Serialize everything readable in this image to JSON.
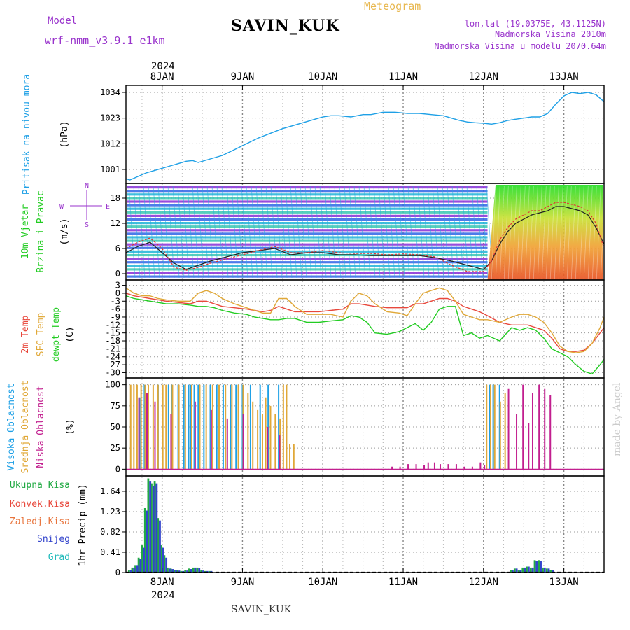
{
  "header": {
    "model_label": "Model",
    "model_name": "wrf-nmm_v3.9.1 e1km",
    "station": "SAVIN_KUK",
    "product": "Meteogram",
    "lonlat": "lon,lat (19.0375E, 43.1125N)",
    "altitude": "Nadmorska Visina 2010m",
    "model_altitude": "Nadmorska Visina u modelu 2070.64m",
    "footer_station": "SAVIN_KUK",
    "credit": "made by Angel",
    "year_top": "2024",
    "year_bottom": "2024"
  },
  "colors": {
    "pressure": "#1ea0e6",
    "temp2m": "#e8483c",
    "sfc": "#e0a838",
    "dewpt": "#22cc22",
    "high_cloud": "#1ea0e6",
    "mid_cloud": "#e0a838",
    "low_cloud": "#c21f8f",
    "total_precip": "#22aa44",
    "snow": "#3344cc",
    "wind_speed_line": "#222222",
    "gust": "#dd3333"
  },
  "chart_data": [
    {
      "type": "line",
      "panel": "pressure",
      "ylabel_name": "Pritisak na nivou mora",
      "ylabel_unit": "(hPa)",
      "yticks": [
        "1034",
        "1023",
        "1012",
        "1001"
      ],
      "ytick_values": [
        1034,
        1023,
        1012,
        1001
      ],
      "ylim": [
        995,
        1037
      ],
      "x_days": [
        "8JAN",
        "9JAN",
        "10JAN",
        "11JAN",
        "12JAN",
        "13JAN"
      ],
      "x": [
        7.55,
        7.6,
        7.7,
        7.8,
        7.9,
        8.0,
        8.1,
        8.2,
        8.3,
        8.38,
        8.45,
        8.6,
        8.75,
        8.9,
        9.05,
        9.2,
        9.35,
        9.5,
        9.65,
        9.8,
        9.9,
        10.0,
        10.1,
        10.2,
        10.35,
        10.5,
        10.6,
        10.75,
        10.9,
        11.05,
        11.2,
        11.35,
        11.5,
        11.6,
        11.7,
        11.8,
        11.9,
        12.0,
        12.1,
        12.2,
        12.3,
        12.4,
        12.5,
        12.6,
        12.7,
        12.8,
        12.9,
        13.0,
        13.1,
        13.2,
        13.3,
        13.4,
        13.5
      ],
      "y": [
        997,
        996.5,
        998,
        999.5,
        1000.5,
        1001.5,
        1002.5,
        1003.5,
        1004.5,
        1004.8,
        1004,
        1005.5,
        1007,
        1009.5,
        1012,
        1014.5,
        1016.5,
        1018.5,
        1020,
        1021.5,
        1022.5,
        1023.5,
        1024,
        1024,
        1023.5,
        1024.5,
        1024.5,
        1025.5,
        1025.5,
        1025,
        1025,
        1024.5,
        1024,
        1023,
        1022,
        1021.3,
        1021,
        1020.8,
        1020.4,
        1021,
        1022,
        1022.5,
        1023,
        1023.5,
        1023.5,
        1025,
        1029,
        1032.5,
        1034,
        1033.5,
        1034,
        1033,
        1030
      ]
    },
    {
      "type": "line",
      "panel": "wind",
      "ylabel_name": "10m Vjetar",
      "ylabel_name2": "Brzina i Pravac",
      "ylabel_unit": "(m/s)",
      "compass": [
        "N",
        "E",
        "S",
        "W"
      ],
      "yticks": [
        "18",
        "12",
        "6",
        "0"
      ],
      "ytick_values": [
        18,
        12,
        6,
        0
      ],
      "ylim": [
        -1.5,
        21.5
      ],
      "series": [
        {
          "name": "speed",
          "x": [
            7.55,
            7.7,
            7.85,
            8.0,
            8.15,
            8.3,
            8.45,
            8.6,
            8.8,
            9.0,
            9.2,
            9.4,
            9.6,
            9.8,
            10.0,
            10.2,
            10.4,
            10.6,
            10.8,
            11.0,
            11.2,
            11.4,
            11.6,
            11.8,
            12.0,
            12.1,
            12.2,
            12.3,
            12.4,
            12.5,
            12.6,
            12.7,
            12.8,
            12.9,
            13.0,
            13.1,
            13.2,
            13.3,
            13.4,
            13.5
          ],
          "y": [
            5,
            6.5,
            7.5,
            5,
            2.5,
            1,
            2,
            3,
            4,
            5,
            5.5,
            6,
            4.5,
            5,
            5,
            4.5,
            4.5,
            4.3,
            4.3,
            4.3,
            4.3,
            3.8,
            3,
            2,
            1,
            3,
            7,
            10,
            12,
            13,
            14,
            14.5,
            15,
            16,
            16,
            15.5,
            15,
            14,
            11,
            7
          ]
        },
        {
          "name": "gust",
          "x": [
            7.55,
            7.7,
            7.85,
            8.0,
            8.15,
            8.3,
            8.45,
            8.6,
            8.8,
            9.0,
            9.2,
            9.4,
            9.6,
            9.8,
            10.0,
            10.2,
            10.4,
            10.6,
            10.8,
            11.0,
            11.2,
            11.4,
            11.6,
            11.8,
            12.0,
            12.1,
            12.2,
            12.3,
            12.4,
            12.5,
            12.6,
            12.7,
            12.8,
            12.9,
            13.0,
            13.1,
            13.2,
            13.3,
            13.4,
            13.5
          ],
          "y": [
            6,
            7.5,
            8.5,
            6,
            1.5,
            0.8,
            1.5,
            2.5,
            3.5,
            4.5,
            5.5,
            6.5,
            5,
            5,
            5.5,
            5,
            4.8,
            4.8,
            4.5,
            4.7,
            4.5,
            4,
            2,
            0.5,
            0.5,
            3,
            8,
            11,
            13,
            14,
            15,
            15,
            16,
            17,
            17,
            16.5,
            16,
            15,
            12,
            6
          ]
        }
      ]
    },
    {
      "type": "line",
      "panel": "temperature",
      "ylabel_name": "2m Temp",
      "ylabel_name2": "SFC Temp",
      "ylabel_name3": "dewpt Temp",
      "ylabel_unit": "(C)",
      "yticks": [
        "3",
        "0",
        "-3",
        "-6",
        "-9",
        "-12",
        "-15",
        "-18",
        "-21",
        "-24",
        "-27",
        "-30"
      ],
      "ytick_values": [
        3,
        0,
        -3,
        -6,
        -9,
        -12,
        -15,
        -18,
        -21,
        -24,
        -27,
        -30
      ],
      "ylim": [
        -32,
        5
      ],
      "x": [
        7.55,
        7.65,
        7.75,
        7.85,
        7.95,
        8.05,
        8.2,
        8.35,
        8.45,
        8.55,
        8.65,
        8.75,
        8.9,
        9.05,
        9.15,
        9.25,
        9.35,
        9.45,
        9.55,
        9.65,
        9.8,
        9.95,
        10.1,
        10.25,
        10.35,
        10.45,
        10.55,
        10.65,
        10.8,
        10.95,
        11.05,
        11.15,
        11.25,
        11.35,
        11.45,
        11.55,
        11.65,
        11.75,
        11.85,
        11.95,
        12.05,
        12.2,
        12.35,
        12.45,
        12.55,
        12.65,
        12.75,
        12.85,
        12.95,
        13.05,
        13.15,
        13.25,
        13.35,
        13.45,
        13.5
      ],
      "series": [
        {
          "name": "2m",
          "y": [
            0,
            -1,
            -1.5,
            -2,
            -2.5,
            -3,
            -3.5,
            -4,
            -3,
            -3,
            -4,
            -5,
            -5.5,
            -6,
            -6.5,
            -7,
            -6.5,
            -5,
            -6,
            -7,
            -7,
            -7,
            -6.5,
            -6,
            -4,
            -4,
            -4.5,
            -5,
            -5.5,
            -5.5,
            -5.5,
            -4,
            -4,
            -3,
            -2,
            -2,
            -3,
            -5,
            -6,
            -7,
            -8.5,
            -11,
            -12,
            -12,
            -12,
            -13,
            -14,
            -17,
            -21,
            -22,
            -22,
            -21.5,
            -19,
            -15,
            -13
          ]
        },
        {
          "name": "SFC",
          "y": [
            2,
            0,
            -1,
            -1,
            -2,
            -2.5,
            -3,
            -3,
            0,
            1,
            0,
            -2,
            -4,
            -5.5,
            -6.5,
            -7.5,
            -7.5,
            -2,
            -2,
            -5,
            -8,
            -8,
            -8,
            -9,
            -3,
            0,
            -1,
            -4,
            -7,
            -7.5,
            -8.5,
            -4,
            0,
            1,
            2,
            1,
            -3,
            -8,
            -9,
            -10,
            -10,
            -11,
            -9,
            -8,
            -8,
            -9,
            -11,
            -15,
            -20,
            -22,
            -22.5,
            -22,
            -19,
            -13,
            -9
          ]
        },
        {
          "name": "dewpt",
          "y": [
            -1,
            -2,
            -2.5,
            -3,
            -3.5,
            -4,
            -4,
            -4.5,
            -5,
            -5,
            -5.5,
            -6.5,
            -7.5,
            -8,
            -9,
            -9.5,
            -10,
            -10,
            -9.5,
            -9.5,
            -11,
            -11,
            -10.5,
            -10,
            -8.5,
            -9,
            -11,
            -15,
            -15.5,
            -14.5,
            -13,
            -11.5,
            -14,
            -11,
            -6,
            -5,
            -5,
            -16,
            -15,
            -17,
            -16,
            -18,
            -13,
            -14,
            -13,
            -14,
            -17,
            -21,
            -22.5,
            -24,
            -27,
            -29.5,
            -30.5,
            -27,
            -25
          ]
        }
      ]
    },
    {
      "type": "bar",
      "panel": "clouds",
      "ylabel_name": "Visoka Oblacnost",
      "ylabel_name2": "Srednja Oblacnost",
      "ylabel_name3": "Niska Oblacnost",
      "ylabel_unit": "(%)",
      "yticks": [
        "100",
        "75",
        "50",
        "25",
        "0"
      ],
      "ytick_values": [
        100,
        75,
        50,
        25,
        0
      ],
      "ylim": [
        -8,
        108
      ],
      "series": [
        {
          "name": "high",
          "x": [
            7.72,
            7.78,
            7.95,
            8.08,
            8.12,
            8.2,
            8.27,
            8.33,
            8.36,
            8.4,
            8.45,
            8.52,
            8.6,
            8.68,
            8.76,
            8.85,
            8.92,
            9.0,
            9.1,
            9.22,
            9.32,
            9.45,
            12.08,
            12.12,
            12.2
          ],
          "y": [
            85,
            100,
            100,
            100,
            100,
            100,
            100,
            100,
            100,
            100,
            100,
            100,
            100,
            100,
            100,
            100,
            100,
            100,
            100,
            100,
            100,
            100,
            100,
            100,
            100
          ]
        },
        {
          "name": "mid",
          "x": [
            7.62,
            7.66,
            7.7,
            7.75,
            7.8,
            7.84,
            7.9,
            7.96,
            8.02,
            8.06,
            8.14,
            8.22,
            8.3,
            8.38,
            8.48,
            8.56,
            8.64,
            8.72,
            8.8,
            8.88,
            8.96,
            9.02,
            9.08,
            9.14,
            9.2,
            9.26,
            9.3,
            9.36,
            9.42,
            9.48,
            9.52,
            9.56,
            9.6,
            9.65,
            12.05,
            12.1,
            12.15,
            12.22,
            12.28
          ],
          "y": [
            100,
            100,
            100,
            100,
            100,
            100,
            100,
            100,
            100,
            100,
            100,
            100,
            100,
            100,
            100,
            100,
            100,
            100,
            100,
            100,
            100,
            100,
            90,
            80,
            70,
            65,
            85,
            75,
            65,
            60,
            100,
            100,
            30,
            30,
            100,
            100,
            100,
            80,
            90
          ]
        },
        {
          "name": "low",
          "x": [
            7.7,
            7.8,
            7.9,
            8.1,
            8.4,
            8.6,
            8.8,
            9.0,
            9.3,
            9.45,
            10.85,
            10.95,
            11.05,
            11.15,
            11.25,
            11.3,
            11.38,
            11.45,
            11.55,
            11.65,
            11.75,
            11.85,
            11.95,
            12.0,
            12.3,
            12.4,
            12.48,
            12.55,
            12.6,
            12.68,
            12.75,
            12.82
          ],
          "y": [
            85,
            90,
            80,
            65,
            80,
            70,
            60,
            65,
            50,
            40,
            3,
            3,
            6,
            6,
            5,
            8,
            8,
            6,
            6,
            6,
            3,
            3,
            8,
            5,
            95,
            65,
            100,
            55,
            90,
            100,
            95,
            88
          ]
        }
      ]
    },
    {
      "type": "bar",
      "panel": "precipitation",
      "legend": [
        "Ukupna Kisa",
        "Konvek.Kisa",
        "Zaledj.Kisa",
        "Snijeg",
        "Grad"
      ],
      "legend_colors": [
        "#22aa44",
        "#e8483c",
        "#e8743c",
        "#3344cc",
        "#22bbbb"
      ],
      "ylabel_name": "1hr Precip",
      "ylabel_unit": "(mm)",
      "yticks": [
        "1.64",
        "1.23",
        "0.82",
        "0.41",
        "0"
      ],
      "ytick_values": [
        1.64,
        1.23,
        0.82,
        0.41,
        0
      ],
      "ylim": [
        0,
        1.95
      ],
      "x": [
        7.6,
        7.64,
        7.68,
        7.72,
        7.76,
        7.8,
        7.84,
        7.88,
        7.92,
        7.96,
        8.0,
        8.04,
        8.08,
        8.12,
        8.16,
        8.2,
        8.25,
        8.3,
        8.35,
        8.4,
        8.45,
        8.5,
        8.55,
        8.6,
        12.35,
        12.4,
        12.45,
        12.5,
        12.55,
        12.6,
        12.65,
        12.7,
        12.75,
        12.8,
        12.85
      ],
      "series": [
        {
          "name": "total",
          "y": [
            0.05,
            0.1,
            0.15,
            0.3,
            0.55,
            1.3,
            1.9,
            1.8,
            1.85,
            1.1,
            0.55,
            0.35,
            0.1,
            0.08,
            0.05,
            0.05,
            0.03,
            0.05,
            0.08,
            0.1,
            0.1,
            0.05,
            0.03,
            0.03,
            0.05,
            0.08,
            0.05,
            0.1,
            0.12,
            0.1,
            0.25,
            0.25,
            0.1,
            0.08,
            0.05
          ]
        },
        {
          "name": "snow",
          "y": [
            0.05,
            0.1,
            0.15,
            0.28,
            0.5,
            1.25,
            1.85,
            1.75,
            1.8,
            1.05,
            0.5,
            0.3,
            0.08,
            0.07,
            0.05,
            0.04,
            0.03,
            0.04,
            0.07,
            0.1,
            0.09,
            0.04,
            0.03,
            0.03,
            0.05,
            0.08,
            0.05,
            0.1,
            0.12,
            0.1,
            0.24,
            0.24,
            0.1,
            0.08,
            0.05
          ]
        }
      ]
    }
  ]
}
